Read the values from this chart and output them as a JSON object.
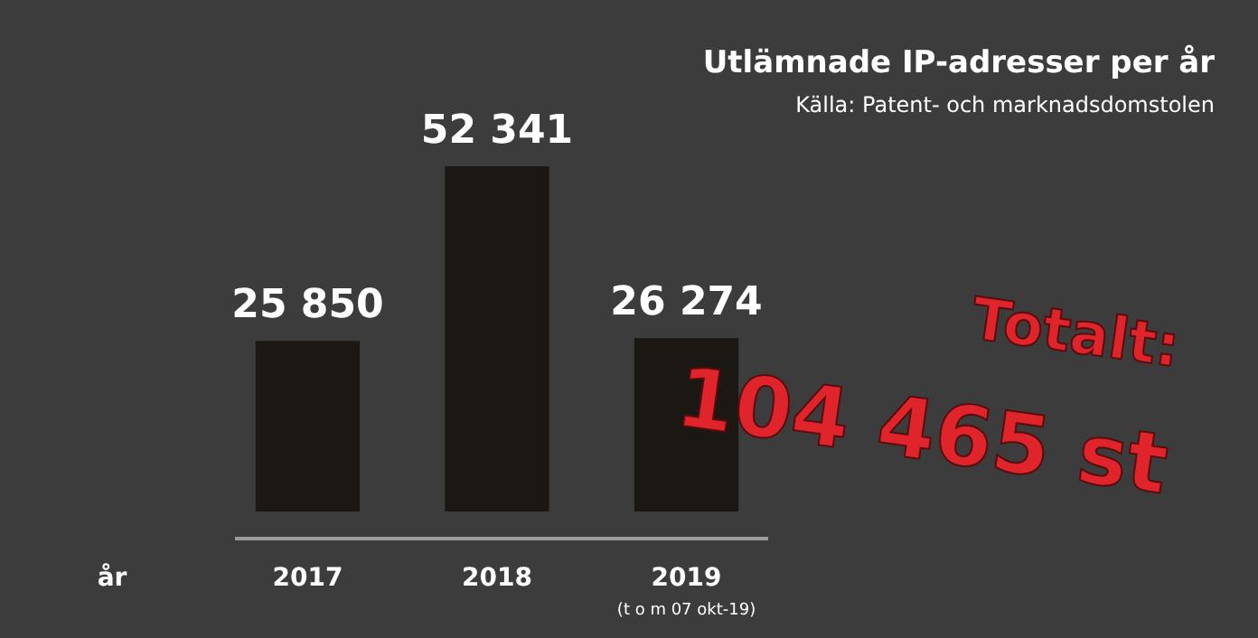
{
  "chart_data": {
    "type": "bar",
    "title": "Utlämnade IP-adresser per år",
    "subtitle": "Källa: Patent- och marknadsdomstolen",
    "xlabel": "år",
    "categories": [
      "2017",
      "2018",
      "2019"
    ],
    "values": [
      25850,
      52341,
      26274
    ],
    "value_labels": [
      "25 850",
      "52 341",
      "26 274"
    ],
    "color": "#1b1713",
    "annotations": [
      "(t o m 07 okt-19)",
      "Totalt:",
      "104 465 st"
    ],
    "grid": false
  }
}
